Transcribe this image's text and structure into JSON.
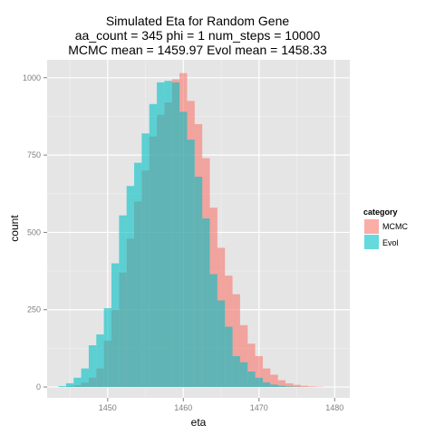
{
  "chart_data": {
    "type": "bar",
    "title_lines": [
      "Simulated Eta for Random Gene",
      "aa_count = 345 phi = 1 num_steps = 10000",
      "MCMC mean = 1459.97 Evol mean = 1458.33"
    ],
    "xlabel": "eta",
    "ylabel": "count",
    "xlim": [
      1442,
      1482
    ],
    "ylim": [
      -35,
      1058
    ],
    "xticks": [
      1450,
      1460,
      1470,
      1480
    ],
    "yticks": [
      0,
      250,
      500,
      750,
      1000
    ],
    "grid": true,
    "bin_width": 1,
    "legend": {
      "title": "category",
      "placement": "right"
    },
    "series": [
      {
        "name": "MCMC",
        "color": "#F8766D",
        "bins": [
          {
            "x": 1444,
            "y": 0
          },
          {
            "x": 1445,
            "y": 2
          },
          {
            "x": 1446,
            "y": 6
          },
          {
            "x": 1447,
            "y": 14
          },
          {
            "x": 1448,
            "y": 30
          },
          {
            "x": 1449,
            "y": 60
          },
          {
            "x": 1450,
            "y": 150
          },
          {
            "x": 1451,
            "y": 250
          },
          {
            "x": 1452,
            "y": 370
          },
          {
            "x": 1453,
            "y": 480
          },
          {
            "x": 1454,
            "y": 600
          },
          {
            "x": 1455,
            "y": 700
          },
          {
            "x": 1456,
            "y": 810
          },
          {
            "x": 1457,
            "y": 880
          },
          {
            "x": 1458,
            "y": 920
          },
          {
            "x": 1459,
            "y": 995
          },
          {
            "x": 1460,
            "y": 1015
          },
          {
            "x": 1461,
            "y": 925
          },
          {
            "x": 1462,
            "y": 850
          },
          {
            "x": 1463,
            "y": 740
          },
          {
            "x": 1464,
            "y": 580
          },
          {
            "x": 1465,
            "y": 450
          },
          {
            "x": 1466,
            "y": 360
          },
          {
            "x": 1467,
            "y": 300
          },
          {
            "x": 1468,
            "y": 200
          },
          {
            "x": 1469,
            "y": 140
          },
          {
            "x": 1470,
            "y": 100
          },
          {
            "x": 1471,
            "y": 60
          },
          {
            "x": 1472,
            "y": 40
          },
          {
            "x": 1473,
            "y": 22
          },
          {
            "x": 1474,
            "y": 12
          },
          {
            "x": 1475,
            "y": 7
          },
          {
            "x": 1476,
            "y": 4
          },
          {
            "x": 1477,
            "y": 2
          },
          {
            "x": 1478,
            "y": 1
          }
        ]
      },
      {
        "name": "Evol",
        "color": "#00BFC4",
        "bins": [
          {
            "x": 1444,
            "y": 3
          },
          {
            "x": 1445,
            "y": 12
          },
          {
            "x": 1446,
            "y": 30
          },
          {
            "x": 1447,
            "y": 60
          },
          {
            "x": 1448,
            "y": 135
          },
          {
            "x": 1449,
            "y": 170
          },
          {
            "x": 1450,
            "y": 255
          },
          {
            "x": 1451,
            "y": 400
          },
          {
            "x": 1452,
            "y": 555
          },
          {
            "x": 1453,
            "y": 650
          },
          {
            "x": 1454,
            "y": 725
          },
          {
            "x": 1455,
            "y": 820
          },
          {
            "x": 1456,
            "y": 915
          },
          {
            "x": 1457,
            "y": 985
          },
          {
            "x": 1458,
            "y": 990
          },
          {
            "x": 1459,
            "y": 985
          },
          {
            "x": 1460,
            "y": 890
          },
          {
            "x": 1461,
            "y": 800
          },
          {
            "x": 1462,
            "y": 680
          },
          {
            "x": 1463,
            "y": 545
          },
          {
            "x": 1464,
            "y": 365
          },
          {
            "x": 1465,
            "y": 280
          },
          {
            "x": 1466,
            "y": 195
          },
          {
            "x": 1467,
            "y": 100
          },
          {
            "x": 1468,
            "y": 80
          },
          {
            "x": 1469,
            "y": 50
          },
          {
            "x": 1470,
            "y": 30
          },
          {
            "x": 1471,
            "y": 15
          },
          {
            "x": 1472,
            "y": 8
          },
          {
            "x": 1473,
            "y": 4
          },
          {
            "x": 1474,
            "y": 2
          },
          {
            "x": 1475,
            "y": 1
          }
        ]
      }
    ]
  }
}
